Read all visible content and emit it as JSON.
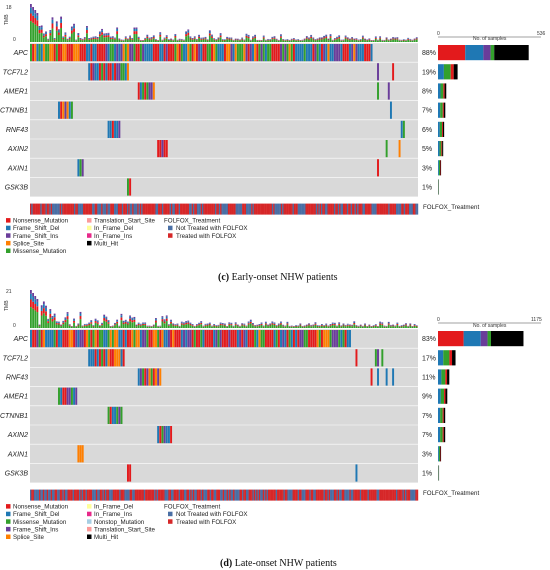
{
  "colors": {
    "Nonsense_Mutation": "#e31a1c",
    "Frame_Shift_Del": "#1f78b4",
    "Frame_Shift_Ins": "#6a3d9a",
    "Splice_Site": "#ff7f00",
    "Missense_Mutation": "#33a02c",
    "Translation_Start_Site": "#fb9a99",
    "In_Frame_Del": "#ffff99",
    "In_Frame_Ins": "#e7298a",
    "Multi_Hit": "#000000",
    "Nonstop_Mutation": "#a6cee3",
    "Not Treated with FOLFOX": "#4a6fa5",
    "Treated with FOLFOX": "#d62728",
    "background": "#d9d9d9"
  },
  "chart_data": [
    {
      "type": "oncoplot",
      "panel": "c",
      "caption_letter": "(c)",
      "caption_text": " Early-onset NHW patients",
      "tmb_label": "TMB",
      "tmb_max": 18,
      "tmb_min_label": "0",
      "bar_axis_min": "0",
      "bar_axis_max": "536",
      "bar_axis_label": "No. of samples",
      "max_samples": 536,
      "genes": [
        "APC",
        "TCF7L2",
        "AMER1",
        "CTNNB1",
        "RNF43",
        "AXIN2",
        "AXIN1",
        "GSK3B"
      ],
      "percents": [
        "88%",
        "19%",
        "8%",
        "7%",
        "6%",
        "5%",
        "3%",
        "1%"
      ],
      "freq_counts": [
        472,
        102,
        43,
        38,
        32,
        27,
        16,
        5
      ],
      "annotation_label": "FOLFOX_Treatment",
      "legend_col1": [
        "Nonsense_Mutation",
        "Frame_Shift_Del",
        "Frame_Shift_Ins",
        "Splice_Site",
        "Missense_Mutation"
      ],
      "legend_col2": [
        "Translation_Start_Site",
        "In_Frame_Del",
        "In_Frame_Ins",
        "Multi_Hit"
      ],
      "legend_title": "FOLFOX_Treatment",
      "legend_col3": [
        "Not Treated with FOLFOX",
        "Treated with FOLFOX"
      ]
    },
    {
      "type": "oncoplot",
      "panel": "d",
      "caption_letter": "(d)",
      "caption_text": " Late-onset NHW patients",
      "tmb_label": "TMB",
      "tmb_max": 21,
      "tmb_min_label": "0",
      "bar_axis_min": "0",
      "bar_axis_max": "1175",
      "bar_axis_label": "No. of samples",
      "max_samples": 1175,
      "genes": [
        "APC",
        "TCF7L2",
        "RNF43",
        "AMER1",
        "CTNNB1",
        "AXIN2",
        "AXIN1",
        "GSK3B"
      ],
      "percents": [
        "83%",
        "17%",
        "11%",
        "9%",
        "7%",
        "7%",
        "3%",
        "1%"
      ],
      "freq_counts": [
        975,
        200,
        129,
        106,
        82,
        82,
        35,
        12
      ],
      "annotation_label": "FOLFOX_Treatment",
      "legend_col1": [
        "Nonsense_Mutation",
        "Frame_Shift_Del",
        "Missense_Mutation",
        "Frame_Shift_Ins",
        "Splice_Site"
      ],
      "legend_col2": [
        "In_Frame_Del",
        "In_Frame_Ins",
        "Nonstop_Mutation",
        "Translation_Start_Site",
        "Multi_Hit"
      ],
      "legend_title": "FOLFOX_Treatment",
      "legend_col3": [
        "Not Treated with FOLFOX",
        "Treated with FOLFOX"
      ]
    }
  ]
}
